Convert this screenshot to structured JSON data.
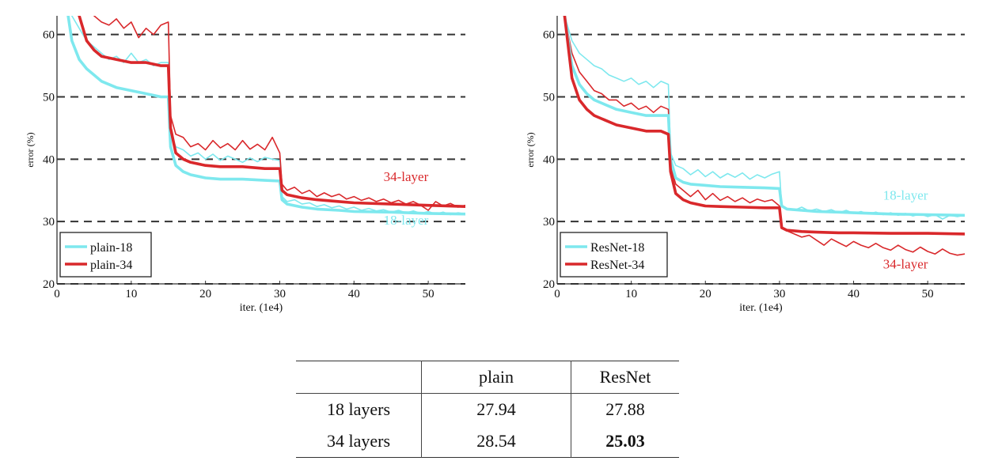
{
  "chart_data": [
    {
      "type": "line",
      "panel": "plain",
      "xlabel": "iter. (1e4)",
      "ylabel": "error (%)",
      "xlim": [
        0,
        55
      ],
      "ylim": [
        20,
        63
      ],
      "xticks": [
        0,
        10,
        20,
        30,
        40,
        50
      ],
      "yticks": [
        20,
        30,
        40,
        50,
        60
      ],
      "grid": "dashed horizontal",
      "legend_position": "bottom-left",
      "legend": [
        "plain-18",
        "plain-34"
      ],
      "annotations": [
        {
          "text": "34-layer",
          "x": 47,
          "y": 36.5,
          "color": "#d9282b"
        },
        {
          "text": "18-layer",
          "x": 47,
          "y": 29.5,
          "color": "#7ee8ee"
        }
      ],
      "series": [
        {
          "name": "plain-18",
          "style": "thick",
          "color": "#7ee8ee",
          "x": [
            1.5,
            2,
            3,
            4,
            5,
            6,
            8,
            10,
            12,
            14,
            15,
            15.3,
            16,
            17,
            18,
            20,
            22,
            25,
            28,
            30,
            30.3,
            31,
            33,
            35,
            38,
            40,
            45,
            50,
            55
          ],
          "y": [
            63,
            59,
            56,
            54.5,
            53.5,
            52.5,
            51.5,
            51,
            50.5,
            50,
            50,
            42,
            39,
            38,
            37.5,
            37,
            36.8,
            36.8,
            36.6,
            36.5,
            33.5,
            32.8,
            32.3,
            32,
            31.8,
            31.6,
            31.5,
            31.3,
            31.2
          ]
        },
        {
          "name": "plain-34",
          "style": "thick",
          "color": "#d9282b",
          "x": [
            3,
            4,
            5,
            6,
            8,
            10,
            12,
            14,
            15,
            15.3,
            16,
            17,
            18,
            20,
            22,
            25,
            28,
            30,
            30.3,
            31,
            33,
            35,
            38,
            40,
            45,
            50,
            55
          ],
          "y": [
            63,
            59,
            57.5,
            56.5,
            56,
            55.5,
            55.5,
            55,
            55,
            45,
            41,
            40,
            39.5,
            39,
            38.8,
            38.8,
            38.5,
            38.5,
            35,
            34.3,
            33.8,
            33.5,
            33.2,
            33,
            32.8,
            32.6,
            32.4
          ]
        },
        {
          "name": "plain-18 (train)",
          "style": "thin",
          "color": "#7ee8ee",
          "x": [
            2,
            3,
            4,
            5,
            6,
            7,
            8,
            9,
            10,
            11,
            12,
            13,
            14,
            15,
            15.3,
            16,
            17,
            18,
            19,
            20,
            21,
            22,
            23,
            24,
            25,
            26,
            27,
            28,
            29,
            30,
            30.3,
            31,
            32,
            33,
            34,
            35,
            36,
            37,
            38,
            39,
            40,
            41,
            42,
            43,
            44,
            45,
            46,
            47,
            48,
            49,
            50,
            51,
            52,
            53,
            54,
            55
          ],
          "y": [
            63,
            61,
            59,
            58,
            57,
            56,
            56.5,
            55.5,
            57,
            55.5,
            56,
            55,
            55.5,
            55.5,
            44,
            42,
            41.5,
            40.5,
            41,
            40,
            40.8,
            39.8,
            40.5,
            40,
            39.5,
            40.2,
            39.6,
            40.3,
            40,
            39.8,
            34,
            33.2,
            33.5,
            32.8,
            33,
            32.4,
            32.7,
            32.2,
            32.5,
            32,
            32.3,
            31.8,
            32.1,
            31.7,
            31.9,
            31.5,
            31.8,
            31.4,
            31.7,
            31.3,
            31.6,
            31.2,
            31.5,
            31.1,
            31.4,
            31.2
          ]
        },
        {
          "name": "plain-34 (train)",
          "style": "thin",
          "color": "#d9282b",
          "x": [
            5,
            6,
            7,
            8,
            9,
            10,
            11,
            12,
            13,
            14,
            15,
            15.3,
            16,
            17,
            18,
            19,
            20,
            21,
            22,
            23,
            24,
            25,
            26,
            27,
            28,
            29,
            30,
            30.3,
            31,
            32,
            33,
            34,
            35,
            36,
            37,
            38,
            39,
            40,
            41,
            42,
            43,
            44,
            45,
            46,
            47,
            48,
            49,
            50,
            51,
            52,
            53,
            54,
            55
          ],
          "y": [
            63,
            62,
            61.5,
            62.5,
            61,
            62,
            59.5,
            61,
            60,
            61.5,
            62,
            47,
            44,
            43.5,
            42,
            42.5,
            41.5,
            43,
            41.8,
            42.5,
            41.5,
            43,
            41.6,
            42.4,
            41.5,
            43.5,
            41,
            36,
            35,
            35.5,
            34.5,
            35,
            34,
            34.6,
            34,
            34.4,
            33.6,
            34,
            33.4,
            33.8,
            33.2,
            33.6,
            33,
            33.4,
            32.8,
            33.2,
            32.6,
            31.8,
            33.2,
            32.5,
            32.9,
            32.3,
            32.6
          ]
        }
      ]
    },
    {
      "type": "line",
      "panel": "ResNet",
      "xlabel": "iter. (1e4)",
      "ylabel": "error (%)",
      "xlim": [
        0,
        55
      ],
      "ylim": [
        20,
        63
      ],
      "xticks": [
        0,
        10,
        20,
        30,
        40,
        50
      ],
      "yticks": [
        20,
        30,
        40,
        50,
        60
      ],
      "grid": "dashed horizontal",
      "legend_position": "bottom-left",
      "legend": [
        "ResNet-18",
        "ResNet-34"
      ],
      "annotations": [
        {
          "text": "18-layer",
          "x": 47,
          "y": 33.5,
          "color": "#7ee8ee"
        },
        {
          "text": "34-layer",
          "x": 47,
          "y": 22.5,
          "color": "#d9282b"
        }
      ],
      "series": [
        {
          "name": "ResNet-18",
          "style": "thick",
          "color": "#7ee8ee",
          "x": [
            1,
            2,
            3,
            4,
            5,
            6,
            8,
            10,
            12,
            14,
            15,
            15.3,
            16,
            17,
            18,
            20,
            22,
            25,
            28,
            30,
            30.3,
            31,
            33,
            35,
            38,
            40,
            45,
            50,
            55
          ],
          "y": [
            63,
            55,
            52,
            50.5,
            49.5,
            49,
            48,
            47.5,
            47,
            47,
            47,
            40,
            37,
            36.3,
            36,
            35.8,
            35.6,
            35.5,
            35.4,
            35.3,
            32.5,
            32,
            31.8,
            31.6,
            31.5,
            31.4,
            31.2,
            31.1,
            31
          ]
        },
        {
          "name": "ResNet-34",
          "style": "thick",
          "color": "#d9282b",
          "x": [
            1,
            2,
            3,
            4,
            5,
            6,
            8,
            10,
            12,
            14,
            15,
            15.3,
            16,
            17,
            18,
            20,
            22,
            25,
            28,
            30,
            30.3,
            31,
            33,
            35,
            38,
            40,
            45,
            50,
            55
          ],
          "y": [
            63,
            53,
            49.5,
            48,
            47,
            46.5,
            45.5,
            45,
            44.5,
            44.5,
            44,
            38,
            34.5,
            33.5,
            33,
            32.5,
            32.4,
            32.3,
            32.2,
            32.2,
            29,
            28.6,
            28.4,
            28.3,
            28.2,
            28.2,
            28.1,
            28.1,
            28
          ]
        },
        {
          "name": "ResNet-18 (train)",
          "style": "thin",
          "color": "#7ee8ee",
          "x": [
            1,
            2,
            3,
            4,
            5,
            6,
            7,
            8,
            9,
            10,
            11,
            12,
            13,
            14,
            15,
            15.3,
            16,
            17,
            18,
            19,
            20,
            21,
            22,
            23,
            24,
            25,
            26,
            27,
            28,
            29,
            30,
            30.3,
            31,
            32,
            33,
            34,
            35,
            36,
            37,
            38,
            39,
            40,
            41,
            42,
            43,
            44,
            45,
            46,
            47,
            48,
            49,
            50,
            51,
            52,
            53,
            54,
            55
          ],
          "y": [
            63,
            59,
            57,
            56,
            55,
            54.5,
            53.5,
            53,
            52.5,
            53,
            52,
            52.5,
            51.5,
            52.5,
            52,
            41,
            39,
            38.5,
            37.5,
            38.3,
            37.2,
            38,
            37,
            37.7,
            37.1,
            37.8,
            36.8,
            37.5,
            37,
            37.6,
            38,
            32.5,
            32.1,
            31.8,
            32.3,
            31.7,
            32,
            31.6,
            31.9,
            31.4,
            31.8,
            31.3,
            31.6,
            31.2,
            31.5,
            31.1,
            31.4,
            31,
            31.3,
            30.9,
            31.2,
            30.8,
            31.1,
            30.4,
            31,
            30.8,
            31
          ]
        },
        {
          "name": "ResNet-34 (train)",
          "style": "thin",
          "color": "#d9282b",
          "x": [
            1,
            2,
            3,
            4,
            5,
            6,
            7,
            8,
            9,
            10,
            11,
            12,
            13,
            14,
            15,
            15.3,
            16,
            17,
            18,
            19,
            20,
            21,
            22,
            23,
            24,
            25,
            26,
            27,
            28,
            29,
            30,
            30.3,
            31,
            32,
            33,
            34,
            35,
            36,
            37,
            38,
            39,
            40,
            41,
            42,
            43,
            44,
            45,
            46,
            47,
            48,
            49,
            50,
            51,
            52,
            53,
            54,
            55
          ],
          "y": [
            63,
            57,
            54,
            52.5,
            51,
            50.5,
            49.5,
            49.5,
            48.5,
            49,
            48,
            48.5,
            47.5,
            48.5,
            48,
            39,
            36,
            35,
            34,
            35,
            33.5,
            34.5,
            33.4,
            34,
            33.2,
            33.8,
            33,
            33.6,
            33.2,
            33.5,
            32.5,
            29,
            28.5,
            28,
            27.5,
            27.8,
            27,
            26.2,
            27.2,
            26.6,
            26,
            26.8,
            26.2,
            25.8,
            26.5,
            25.8,
            25.4,
            26.2,
            25.5,
            25.1,
            25.9,
            25.2,
            24.8,
            25.6,
            24.9,
            24.6,
            24.8
          ]
        }
      ]
    }
  ],
  "table": {
    "headers": [
      "",
      "plain",
      "ResNet"
    ],
    "rows": [
      {
        "label": "18 layers",
        "plain": "27.94",
        "resnet": "27.88"
      },
      {
        "label": "34 layers",
        "plain": "28.54",
        "resnet": "25.03"
      }
    ]
  }
}
